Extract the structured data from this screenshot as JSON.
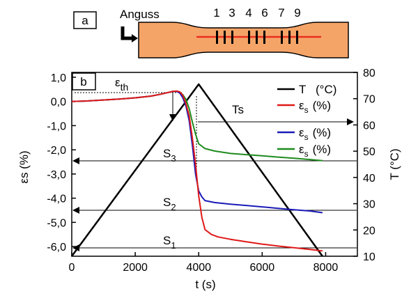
{
  "panel_a": {
    "label": "a",
    "gate_label": "Anguss",
    "sensor_numbers": [
      {
        "text": "1",
        "color": "#d40000"
      },
      {
        "text": "3",
        "color": "#d40000"
      },
      {
        "text": "4",
        "color": "#1a1aaa"
      },
      {
        "text": "6",
        "color": "#1a1aaa"
      },
      {
        "text": "7",
        "color": "#1a8a1a"
      },
      {
        "text": "9",
        "color": "#1a8a1a"
      }
    ],
    "specimen_color": "#f5a468",
    "fiber_color": "#e83020"
  },
  "panel_b": {
    "label": "b"
  },
  "colors": {
    "temperature": "#000000",
    "s1": "#e01818",
    "s2": "#1a1ab8",
    "s3": "#1e8a1e"
  },
  "chart_data": {
    "type": "line",
    "xlabel": "t (s)",
    "ylabel_left": "εs (%)",
    "ylabel_right": "T  (°C)",
    "xlim": [
      0,
      9000
    ],
    "ylim_left": [
      -6.4,
      1.2
    ],
    "ylim_right": [
      10,
      80
    ],
    "x_ticks": [
      0,
      2000,
      4000,
      6000,
      8000
    ],
    "y_left_ticks": [
      "1,0",
      "0,0",
      "-1,0",
      "-2,0",
      "-3,0",
      "-4,0",
      "-5,0",
      "-6,0"
    ],
    "y_left_tick_values": [
      1,
      0,
      -1,
      -2,
      -3,
      -4,
      -5,
      -6
    ],
    "y_right_ticks": [
      10,
      20,
      30,
      40,
      50,
      60,
      70,
      80
    ],
    "legend": [
      {
        "symbol": "T",
        "unit": "(°C)",
        "color": "#000000"
      },
      {
        "symbol": "ε",
        "sub": "s",
        "unit": "(%)",
        "color": "#e01818"
      },
      {
        "symbol": "ε",
        "sub": "s",
        "unit": "(%)",
        "color": "#1a1ab8"
      },
      {
        "symbol": "ε",
        "sub": "s",
        "unit": "(%)",
        "color": "#1e8a1e"
      }
    ],
    "annotations": {
      "eps_th": {
        "main": "ε",
        "sub": "th"
      },
      "ts": "Ts",
      "s3": {
        "main": "S",
        "sub": "3"
      },
      "s2": {
        "main": "S",
        "sub": "2"
      },
      "s1": {
        "main": "S",
        "sub": "1"
      }
    },
    "series": [
      {
        "axis": "right",
        "color": "#000000",
        "x": [
          0,
          4000,
          7900
        ],
        "y": [
          10,
          75.5,
          10
        ]
      },
      {
        "axis": "left",
        "name": "S1",
        "color": "#e01818",
        "x": [
          0,
          500,
          1000,
          1500,
          2000,
          2500,
          2800,
          3000,
          3200,
          3300,
          3400,
          3500,
          3600,
          3700,
          3800,
          3900,
          4000,
          4100,
          4200,
          4400,
          4600,
          5000,
          5500,
          6000,
          6500,
          7000,
          7500,
          7900
        ],
        "y": [
          0.0,
          0.02,
          0.06,
          0.1,
          0.15,
          0.22,
          0.3,
          0.36,
          0.42,
          0.43,
          0.4,
          0.25,
          -0.1,
          -0.6,
          -1.5,
          -2.6,
          -3.9,
          -4.8,
          -5.3,
          -5.5,
          -5.6,
          -5.7,
          -5.8,
          -5.9,
          -5.98,
          -6.05,
          -6.12,
          -6.18
        ]
      },
      {
        "axis": "left",
        "name": "S2",
        "color": "#1a1ab8",
        "x": [
          0,
          500,
          1000,
          1500,
          2000,
          2500,
          2800,
          3000,
          3200,
          3300,
          3400,
          3500,
          3600,
          3700,
          3800,
          3900,
          4000,
          4100,
          4200,
          4500,
          5000,
          5500,
          6000,
          6500,
          7000,
          7500,
          7900
        ],
        "y": [
          0.0,
          0.02,
          0.06,
          0.1,
          0.15,
          0.22,
          0.3,
          0.36,
          0.42,
          0.42,
          0.35,
          0.15,
          -0.2,
          -0.8,
          -1.8,
          -3.0,
          -3.7,
          -3.95,
          -4.1,
          -4.18,
          -4.25,
          -4.3,
          -4.36,
          -4.42,
          -4.48,
          -4.53,
          -4.6
        ]
      },
      {
        "axis": "left",
        "name": "S3",
        "color": "#1e8a1e",
        "x": [
          0,
          500,
          1000,
          1500,
          2000,
          2500,
          2800,
          3000,
          3200,
          3300,
          3400,
          3500,
          3600,
          3700,
          3800,
          3900,
          4000,
          4200,
          4500,
          5000,
          5500,
          6000,
          6500,
          7000,
          7500,
          7900
        ],
        "y": [
          0.0,
          0.02,
          0.06,
          0.1,
          0.15,
          0.22,
          0.3,
          0.36,
          0.42,
          0.42,
          0.38,
          0.28,
          0.08,
          -0.3,
          -0.85,
          -1.35,
          -1.75,
          -1.95,
          -2.05,
          -2.15,
          -2.2,
          -2.25,
          -2.3,
          -2.35,
          -2.4,
          -2.45
        ]
      }
    ]
  }
}
